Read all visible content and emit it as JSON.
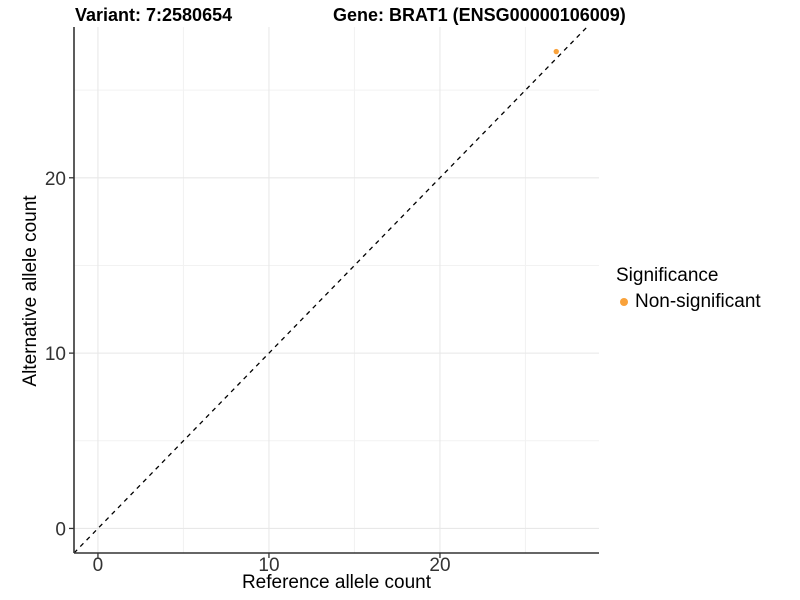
{
  "chart_data": {
    "type": "scatter",
    "title_left": "Variant: 7:2580654",
    "title_right": "Gene: BRAT1 (ENSG00000106009)",
    "xlabel": "Reference allele count",
    "ylabel": "Alternative allele count",
    "x_ticks": [
      0,
      10,
      20
    ],
    "y_ticks": [
      0,
      10,
      20
    ],
    "x_minor_ticks": [
      5,
      15,
      25
    ],
    "y_minor_ticks": [
      5,
      15,
      25
    ],
    "xlim": [
      -1.4,
      29.3
    ],
    "ylim": [
      -1.4,
      28.6
    ],
    "grid": true,
    "background": "#FFFFFF",
    "identity_line": {
      "style": "dashed",
      "color": "#000000",
      "slope": 1,
      "intercept": 0
    },
    "series": [
      {
        "name": "Non-significant",
        "color": "#F9A23B",
        "points": [
          {
            "x": 26.8,
            "y": 27.2
          }
        ]
      }
    ],
    "legend": {
      "title": "Significance",
      "position": "right",
      "entries": [
        {
          "label": "Non-significant",
          "color": "#F9A23B"
        }
      ]
    }
  }
}
